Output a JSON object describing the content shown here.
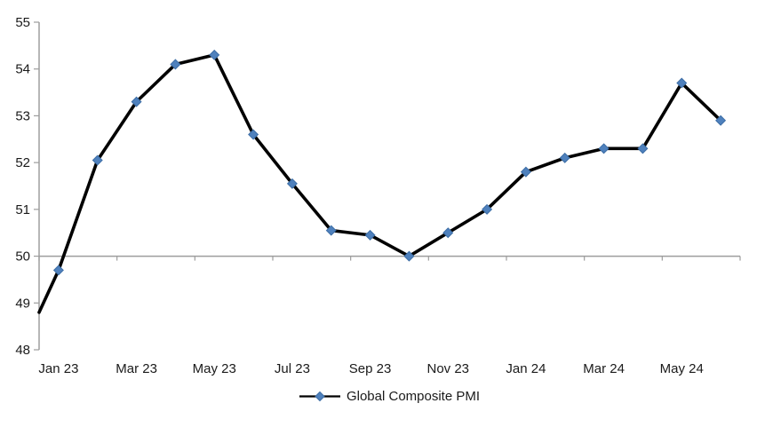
{
  "chart_data": {
    "type": "line",
    "title": "",
    "categories": [
      "Jan 23",
      "Feb 23",
      "Mar 23",
      "Apr 23",
      "May 23",
      "Jun 23",
      "Jul 23",
      "Aug 23",
      "Sep 23",
      "Oct 23",
      "Nov 23",
      "Dec 23",
      "Jan 24",
      "Feb 24",
      "Mar 24",
      "Apr 24",
      "May 24",
      "Jun 24"
    ],
    "series": [
      {
        "name": "Global Composite PMI",
        "values": [
          49.7,
          52.05,
          53.3,
          54.1,
          54.3,
          52.6,
          51.55,
          50.55,
          50.45,
          50.0,
          50.5,
          51.0,
          51.8,
          52.1,
          52.3,
          52.3,
          53.7,
          52.9
        ],
        "color": "#000000",
        "marker": "diamond",
        "marker_color": "#4F81BD",
        "marker_edge_color": "#3C6DA5"
      }
    ],
    "clipped_lead_in": {
      "note": "line enters plot from the left value-axis without a marker",
      "value_at_left_edge": 48.8
    },
    "ylim": [
      48,
      55
    ],
    "y_ticks": [
      48,
      49,
      50,
      51,
      52,
      53,
      54,
      55
    ],
    "x_tick_labels": [
      "Jan 23",
      "Mar 23",
      "May 23",
      "Jul 23",
      "Sep 23",
      "Nov 23",
      "Jan 24",
      "Mar 24",
      "May 24"
    ],
    "axis_crosses_at": 50,
    "grid": false,
    "legend_position": "bottom-center",
    "colors": {
      "axis": "#9D9D9D",
      "text": "#1A1A1A",
      "background": "#FFFFFF"
    }
  }
}
